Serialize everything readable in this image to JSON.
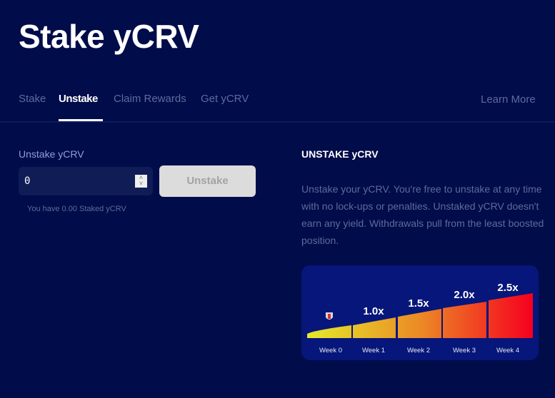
{
  "title": "Stake yCRV",
  "tabs": [
    {
      "label": "Stake"
    },
    {
      "label": "Unstake",
      "active": true
    },
    {
      "label": "Claim Rewards"
    },
    {
      "label": "Get yCRV"
    }
  ],
  "learn_more": "Learn More",
  "form": {
    "label": "Unstake yCRV",
    "value": "0",
    "button": "Unstake",
    "hint": "You have 0.00 Staked yCRV"
  },
  "info": {
    "title": "UNSTAKE yCRV",
    "description": "Unstake your yCRV. You're free to unstake at any time with no lock-ups or penalties. Unstaked yCRV doesn't earn any yield. Withdrawals pull from the least boosted position."
  },
  "boost_graphic": {
    "weeks": [
      "Week 0",
      "Week 1",
      "Week 2",
      "Week 3",
      "Week 4"
    ],
    "multipliers": [
      "",
      "1.0x",
      "1.5x",
      "2.0x",
      "2.5x"
    ],
    "icon": "shield-icon",
    "colors": {
      "start": "#e4ea2a",
      "end": "#f5001e"
    }
  }
}
